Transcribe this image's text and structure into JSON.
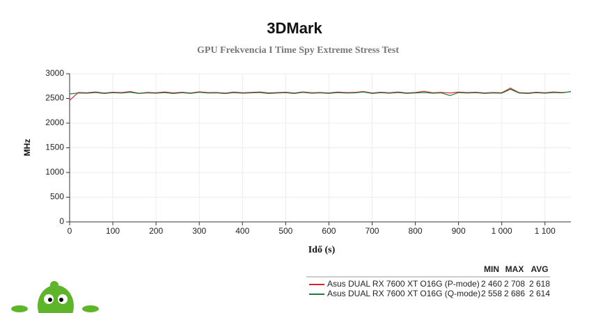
{
  "chart_data": {
    "type": "line",
    "title": "3DMark",
    "subtitle": "GPU Frekvencia I Time Spy Extreme Stress Test",
    "x_label": "Idő (s)",
    "y_label": "MHz",
    "xlim": [
      0,
      1160
    ],
    "ylim": [
      0,
      3000
    ],
    "xticks": [
      0,
      100,
      200,
      300,
      400,
      500,
      600,
      700,
      800,
      900,
      {
        "value": 1000,
        "label": "1 000"
      },
      {
        "value": 1100,
        "label": "1 100"
      }
    ],
    "yticks": [
      0,
      500,
      1000,
      1500,
      2000,
      2500,
      3000
    ],
    "grid": true,
    "stats_header": [
      "MIN",
      "MAX",
      "AVG"
    ],
    "x": [
      0,
      20,
      40,
      60,
      80,
      100,
      120,
      140,
      160,
      180,
      200,
      220,
      240,
      260,
      280,
      300,
      320,
      340,
      360,
      380,
      400,
      420,
      440,
      460,
      480,
      500,
      520,
      540,
      560,
      580,
      600,
      620,
      640,
      660,
      680,
      700,
      720,
      740,
      760,
      780,
      800,
      820,
      840,
      860,
      880,
      900,
      920,
      940,
      960,
      980,
      1000,
      1020,
      1040,
      1060,
      1080,
      1100,
      1120,
      1140,
      1160
    ],
    "series": [
      {
        "name": "Asus DUAL RX 7600 XT O16G (P-mode)",
        "color": "#d9232a",
        "stats": [
          "2 460",
          "2 708",
          "2 618"
        ],
        "values": [
          2460,
          2620,
          2615,
          2630,
          2610,
          2625,
          2618,
          2640,
          2605,
          2622,
          2615,
          2630,
          2612,
          2625,
          2610,
          2635,
          2618,
          2620,
          2608,
          2628,
          2615,
          2622,
          2630,
          2612,
          2618,
          2625,
          2610,
          2632,
          2615,
          2620,
          2612,
          2628,
          2618,
          2622,
          2640,
          2610,
          2625,
          2615,
          2630,
          2612,
          2620,
          2645,
          2615,
          2622,
          2610,
          2628,
          2618,
          2625,
          2612,
          2620,
          2615,
          2708,
          2618,
          2610,
          2625,
          2615,
          2630,
          2620,
          2635
        ]
      },
      {
        "name": "Asus DUAL RX 7600 XT O16G (Q-mode)",
        "color": "#1e7a3c",
        "stats": [
          "2 558",
          "2 686",
          "2 614"
        ],
        "values": [
          2590,
          2610,
          2605,
          2620,
          2600,
          2615,
          2608,
          2625,
          2600,
          2612,
          2605,
          2618,
          2600,
          2615,
          2602,
          2625,
          2608,
          2612,
          2598,
          2618,
          2605,
          2612,
          2620,
          2600,
          2608,
          2615,
          2600,
          2622,
          2605,
          2612,
          2602,
          2618,
          2608,
          2612,
          2630,
          2600,
          2615,
          2605,
          2620,
          2602,
          2610,
          2620,
          2605,
          2612,
          2558,
          2618,
          2608,
          2615,
          2602,
          2610,
          2605,
          2686,
          2608,
          2600,
          2615,
          2605,
          2620,
          2612,
          2640
        ]
      }
    ]
  }
}
